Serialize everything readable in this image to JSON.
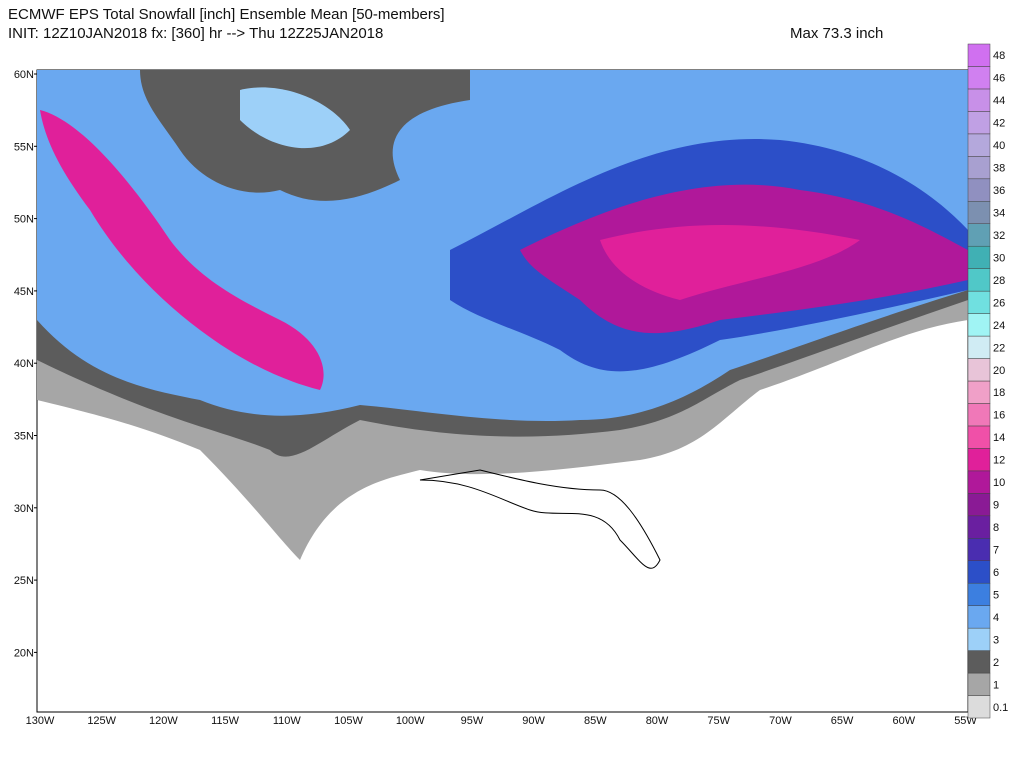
{
  "header": {
    "title": "ECMWF EPS Total Snowfall [inch] Ensemble Mean [50-members]",
    "subtitle": "INIT: 12Z10JAN2018 fx: [360] hr --> Thu 12Z25JAN2018",
    "max": "Max 73.3 inch"
  },
  "map": {
    "lat_labels": [
      "60N",
      "55N",
      "50N",
      "45N",
      "40N",
      "35N",
      "30N",
      "25N",
      "20N"
    ],
    "lon_labels": [
      "130W",
      "125W",
      "120W",
      "115W",
      "110W",
      "105W",
      "100W",
      "95W",
      "90W",
      "85W",
      "80W",
      "75W",
      "70W",
      "65W",
      "60W",
      "55W"
    ]
  },
  "colorbar": {
    "levels": [
      {
        "label": 0.1,
        "color": "#dcdcdc"
      },
      {
        "label": 1,
        "color": "#a6a6a6"
      },
      {
        "label": 2,
        "color": "#5c5c5c"
      },
      {
        "label": 3,
        "color": "#9dd0f8"
      },
      {
        "label": 4,
        "color": "#6aa8f0"
      },
      {
        "label": 5,
        "color": "#3c7fe0"
      },
      {
        "label": 6,
        "color": "#2c4fc8"
      },
      {
        "label": 7,
        "color": "#4a2db0"
      },
      {
        "label": 8,
        "color": "#6a1fa0"
      },
      {
        "label": 9,
        "color": "#8a1a95"
      },
      {
        "label": 10,
        "color": "#b0189a"
      },
      {
        "label": 12,
        "color": "#e0209a"
      },
      {
        "label": 14,
        "color": "#f050a8"
      },
      {
        "label": 16,
        "color": "#f078b8"
      },
      {
        "label": 18,
        "color": "#f0a0c8"
      },
      {
        "label": 20,
        "color": "#e8c4d8"
      },
      {
        "label": 22,
        "color": "#d0ecf4"
      },
      {
        "label": 24,
        "color": "#a0f4f4"
      },
      {
        "label": 26,
        "color": "#70e0e0"
      },
      {
        "label": 28,
        "color": "#50c8c8"
      },
      {
        "label": 30,
        "color": "#40b0b4"
      },
      {
        "label": 32,
        "color": "#60a0b4"
      },
      {
        "label": 34,
        "color": "#7c90b0"
      },
      {
        "label": 36,
        "color": "#9090c0"
      },
      {
        "label": 38,
        "color": "#a8a0d0"
      },
      {
        "label": 40,
        "color": "#b4a8dc"
      },
      {
        "label": 42,
        "color": "#c0a0e4"
      },
      {
        "label": 44,
        "color": "#c890e8"
      },
      {
        "label": 46,
        "color": "#d080f0"
      },
      {
        "label": 48,
        "color": "#d070f0"
      }
    ]
  }
}
